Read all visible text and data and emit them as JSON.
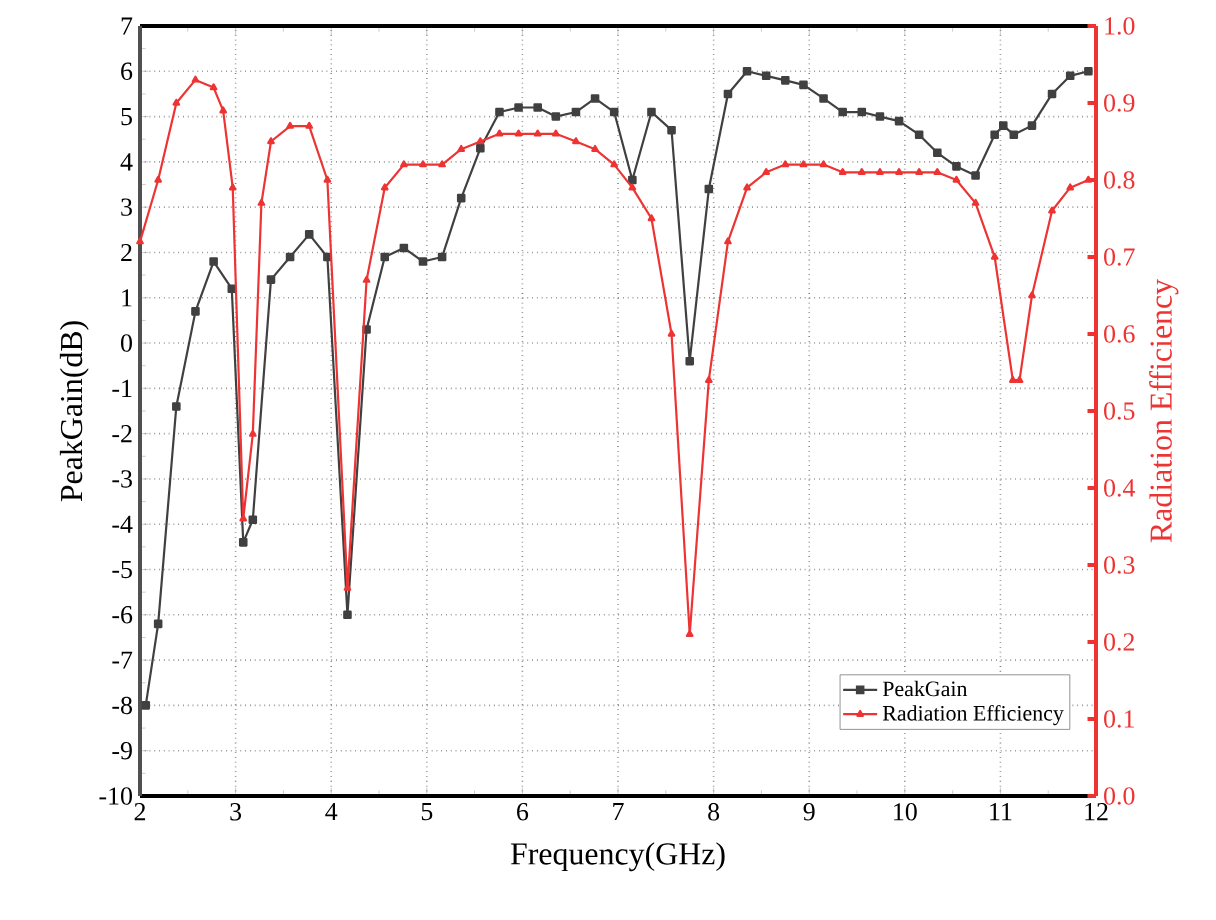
{
  "chart_data": {
    "type": "line",
    "xlabel": "Frequency(GHz)",
    "ylabel": "PeakGain(dB)",
    "y2label": "Radiation Efficiency",
    "xlim": [
      2,
      12
    ],
    "xticks": [
      2,
      3,
      4,
      5,
      6,
      7,
      8,
      9,
      10,
      11,
      12
    ],
    "ylim": [
      -10,
      7
    ],
    "yticks": [
      -10,
      -9,
      -8,
      -7,
      -6,
      -5,
      -4,
      -3,
      -2,
      -1,
      0,
      1,
      2,
      3,
      4,
      5,
      6,
      7
    ],
    "y2lim": [
      0,
      1
    ],
    "y2ticks": [
      {
        "value": 0,
        "label": "0.0"
      },
      {
        "value": 0.1,
        "label": "0.1"
      },
      {
        "value": 0.2,
        "label": "0.2"
      },
      {
        "value": 0.3,
        "label": "0.3"
      },
      {
        "value": 0.4,
        "label": "0.4"
      },
      {
        "value": 0.5,
        "label": "0.5"
      },
      {
        "value": 0.6,
        "label": "0.6"
      },
      {
        "value": 0.7,
        "label": "0.7"
      },
      {
        "value": 0.8,
        "label": "0.8"
      },
      {
        "value": 0.9,
        "label": "0.9"
      },
      {
        "value": 1.0,
        "label": "1.0"
      }
    ],
    "grid": true,
    "legend": "bottom right",
    "line_style": "solid",
    "series": [
      {
        "name": "PeakGain",
        "color": "#404040",
        "marker": "square",
        "x": [
          2.06,
          2.19,
          2.38,
          2.58,
          2.77,
          2.96,
          3.08,
          3.18,
          3.37,
          3.57,
          3.77,
          3.96,
          4.17,
          4.37,
          4.56,
          4.76,
          4.96,
          5.16,
          5.36,
          5.56,
          5.76,
          5.96,
          6.16,
          6.35,
          6.56,
          6.76,
          6.96,
          7.15,
          7.35,
          7.56,
          7.75,
          7.95,
          8.15,
          8.35,
          8.55,
          8.75,
          8.94,
          9.15,
          9.35,
          9.55,
          9.74,
          9.94,
          10.15,
          10.34,
          10.54,
          10.74,
          10.94,
          11.03,
          11.14,
          11.33,
          11.54,
          11.73,
          11.92
        ],
        "values": [
          -8.0,
          -6.2,
          -1.4,
          0.7,
          1.8,
          1.2,
          -4.4,
          -3.9,
          1.4,
          1.9,
          2.4,
          1.9,
          -6.0,
          0.3,
          1.9,
          2.1,
          1.8,
          1.9,
          3.2,
          4.3,
          5.1,
          5.2,
          5.2,
          5.0,
          5.1,
          5.4,
          5.1,
          3.6,
          5.1,
          4.7,
          -0.4,
          3.4,
          5.5,
          6.0,
          5.9,
          5.8,
          5.7,
          5.4,
          5.1,
          5.1,
          5.0,
          4.9,
          4.6,
          4.2,
          3.9,
          3.7,
          4.6,
          4.8,
          4.6,
          4.8,
          5.5,
          5.9,
          6.0
        ]
      },
      {
        "name": "Radiation Efficiency",
        "color": "#ee3333",
        "marker": "triangle",
        "axis": "y2",
        "x": [
          2.0,
          2.19,
          2.38,
          2.58,
          2.77,
          2.87,
          2.97,
          3.08,
          3.18,
          3.27,
          3.37,
          3.57,
          3.77,
          3.96,
          4.17,
          4.37,
          4.56,
          4.76,
          4.96,
          5.16,
          5.36,
          5.56,
          5.76,
          5.96,
          6.16,
          6.35,
          6.56,
          6.76,
          6.96,
          7.15,
          7.35,
          7.56,
          7.75,
          7.95,
          8.15,
          8.35,
          8.55,
          8.75,
          8.94,
          9.15,
          9.35,
          9.55,
          9.74,
          9.94,
          10.15,
          10.34,
          10.54,
          10.74,
          10.94,
          11.13,
          11.2,
          11.33,
          11.54,
          11.73,
          11.92
        ],
        "values": [
          0.72,
          0.8,
          0.9,
          0.93,
          0.92,
          0.89,
          0.79,
          0.36,
          0.47,
          0.77,
          0.85,
          0.87,
          0.87,
          0.8,
          0.27,
          0.67,
          0.79,
          0.82,
          0.82,
          0.82,
          0.84,
          0.85,
          0.86,
          0.86,
          0.86,
          0.86,
          0.85,
          0.84,
          0.82,
          0.79,
          0.75,
          0.6,
          0.21,
          0.54,
          0.72,
          0.79,
          0.81,
          0.82,
          0.82,
          0.82,
          0.81,
          0.81,
          0.81,
          0.81,
          0.81,
          0.81,
          0.8,
          0.77,
          0.7,
          0.54,
          0.54,
          0.65,
          0.76,
          0.79,
          0.8
        ]
      }
    ]
  }
}
